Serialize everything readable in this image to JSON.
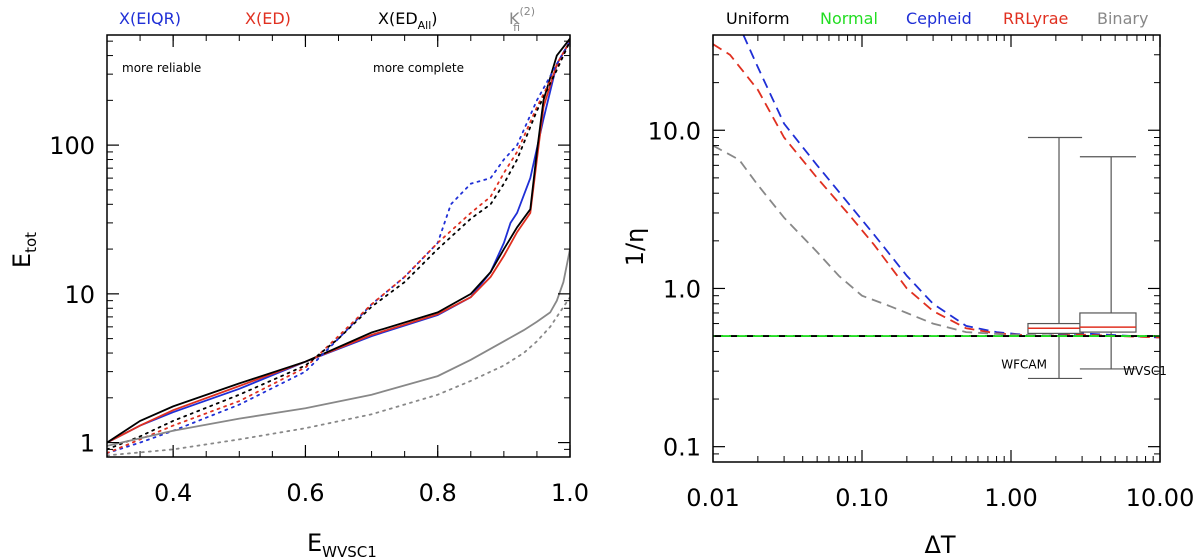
{
  "chart_data": [
    {
      "type": "line",
      "xscale": "linear",
      "yscale": "log",
      "xlabel_main": "E",
      "xlabel_sub": "WVSC1",
      "ylabel_main": "E",
      "ylabel_sub": "tot",
      "xlim": [
        0.3,
        1.0
      ],
      "ylim": [
        0.8,
        550
      ],
      "xticks": [
        {
          "v": 0.4,
          "label": "0.4"
        },
        {
          "v": 0.6,
          "label": "0.6"
        },
        {
          "v": 0.8,
          "label": "0.8"
        },
        {
          "v": 1.0,
          "label": "1.0"
        }
      ],
      "yticks": [
        {
          "v": 1,
          "label": "1"
        },
        {
          "v": 10,
          "label": "10"
        },
        {
          "v": 100,
          "label": "100"
        }
      ],
      "legend": [
        {
          "text": "X(EIQR)",
          "color": "#1f2fd6"
        },
        {
          "text": "X(ED)",
          "color": "#e03020"
        },
        {
          "text": "X(ED",
          "sub": "All",
          "close": ")",
          "color": "#000000"
        },
        {
          "text": "K",
          "sup": "(2)",
          "sub": "fi",
          "color": "#888888"
        }
      ],
      "annotations": [
        "more reliable",
        "more complete"
      ],
      "series": [
        {
          "name": "X(EIQR) solid",
          "color": "#1f2fd6",
          "dash": "solid",
          "x": [
            0.3,
            0.35,
            0.4,
            0.5,
            0.6,
            0.7,
            0.8,
            0.85,
            0.88,
            0.9,
            0.91,
            0.92,
            0.94,
            0.96,
            0.98,
            1.0
          ],
          "y": [
            1.0,
            1.3,
            1.6,
            2.3,
            3.5,
            5.2,
            7.2,
            9.5,
            14,
            22,
            30,
            35,
            60,
            150,
            350,
            500
          ]
        },
        {
          "name": "X(ED) solid",
          "color": "#e03020",
          "dash": "solid",
          "x": [
            0.3,
            0.35,
            0.4,
            0.5,
            0.6,
            0.7,
            0.8,
            0.85,
            0.88,
            0.9,
            0.92,
            0.94,
            0.95,
            0.96,
            0.98,
            1.0
          ],
          "y": [
            1.0,
            1.3,
            1.65,
            2.4,
            3.5,
            5.3,
            7.3,
            9.5,
            13,
            18,
            26,
            35,
            80,
            180,
            350,
            500
          ]
        },
        {
          "name": "X(EDAll) solid",
          "color": "#000000",
          "dash": "solid",
          "x": [
            0.3,
            0.35,
            0.4,
            0.5,
            0.6,
            0.7,
            0.8,
            0.85,
            0.88,
            0.9,
            0.92,
            0.94,
            0.95,
            0.96,
            0.98,
            1.0
          ],
          "y": [
            1.0,
            1.4,
            1.75,
            2.5,
            3.5,
            5.5,
            7.5,
            10,
            14,
            20,
            28,
            37,
            90,
            200,
            400,
            520
          ]
        },
        {
          "name": "X(EIQR) dotted",
          "color": "#1f2fd6",
          "dash": "dotted",
          "x": [
            0.3,
            0.35,
            0.4,
            0.5,
            0.6,
            0.65,
            0.7,
            0.75,
            0.8,
            0.82,
            0.85,
            0.88,
            0.9,
            0.92,
            0.95,
            0.98,
            1.0
          ],
          "y": [
            0.85,
            1.0,
            1.2,
            1.8,
            3.0,
            5.0,
            8.5,
            13,
            22,
            40,
            55,
            60,
            80,
            100,
            200,
            350,
            500
          ]
        },
        {
          "name": "X(ED) dotted",
          "color": "#e03020",
          "dash": "dotted",
          "x": [
            0.3,
            0.35,
            0.4,
            0.5,
            0.6,
            0.65,
            0.7,
            0.75,
            0.8,
            0.85,
            0.88,
            0.9,
            0.92,
            0.95,
            0.98,
            1.0
          ],
          "y": [
            0.85,
            1.05,
            1.3,
            1.9,
            3.2,
            5.2,
            8.5,
            13,
            22,
            35,
            45,
            65,
            90,
            180,
            330,
            500
          ]
        },
        {
          "name": "X(EDAll) dotted",
          "color": "#000000",
          "dash": "dotted",
          "x": [
            0.3,
            0.35,
            0.4,
            0.5,
            0.6,
            0.65,
            0.7,
            0.75,
            0.8,
            0.85,
            0.88,
            0.9,
            0.92,
            0.95,
            0.98,
            1.0
          ],
          "y": [
            0.9,
            1.1,
            1.4,
            2.1,
            3.3,
            5.0,
            8.2,
            12,
            20,
            32,
            40,
            55,
            80,
            170,
            320,
            500
          ]
        },
        {
          "name": "K fi solid",
          "color": "#888888",
          "dash": "solid",
          "x": [
            0.3,
            0.4,
            0.5,
            0.6,
            0.7,
            0.8,
            0.85,
            0.9,
            0.93,
            0.95,
            0.97,
            0.98,
            0.99,
            1.0
          ],
          "y": [
            0.95,
            1.2,
            1.45,
            1.7,
            2.1,
            2.8,
            3.6,
            4.8,
            5.7,
            6.5,
            7.5,
            9,
            12,
            20
          ]
        },
        {
          "name": "K fi dotted",
          "color": "#888888",
          "dash": "dotted",
          "x": [
            0.3,
            0.4,
            0.5,
            0.6,
            0.7,
            0.8,
            0.85,
            0.9,
            0.93,
            0.95,
            0.97,
            0.98,
            1.0
          ],
          "y": [
            0.82,
            0.9,
            1.05,
            1.25,
            1.55,
            2.1,
            2.6,
            3.3,
            4.0,
            4.8,
            6.0,
            7.0,
            9.5
          ]
        }
      ]
    },
    {
      "type": "line",
      "xscale": "log",
      "yscale": "log",
      "xlabel_main": "ΔT",
      "ylabel_main": "1/η",
      "xlim": [
        0.01,
        10
      ],
      "ylim": [
        0.08,
        40
      ],
      "xticks": [
        {
          "v": 0.01,
          "label": "0.01"
        },
        {
          "v": 0.1,
          "label": "0.10"
        },
        {
          "v": 1,
          "label": "1.00"
        },
        {
          "v": 10,
          "label": "10.00"
        }
      ],
      "yticks": [
        {
          "v": 0.1,
          "label": "0.1"
        },
        {
          "v": 1,
          "label": "1.0"
        },
        {
          "v": 10,
          "label": "10.0"
        }
      ],
      "legend": [
        {
          "text": "Uniform",
          "color": "#000000"
        },
        {
          "text": "Normal",
          "color": "#22dd22"
        },
        {
          "text": "Cepheid",
          "color": "#1f2fd6"
        },
        {
          "text": "RRLyrae",
          "color": "#e03020"
        },
        {
          "text": "Binary",
          "color": "#888888"
        }
      ],
      "series": [
        {
          "name": "Uniform",
          "color": "#000000",
          "dash": "dashed",
          "x": [
            0.01,
            0.1,
            1,
            10
          ],
          "y": [
            0.5,
            0.5,
            0.5,
            0.5
          ]
        },
        {
          "name": "Normal",
          "color": "#22dd22",
          "dash": "dashed",
          "x": [
            0.01,
            0.1,
            1,
            10
          ],
          "y": [
            0.5,
            0.5,
            0.5,
            0.5
          ]
        },
        {
          "name": "Cepheid",
          "color": "#1f2fd6",
          "dash": "dashed",
          "x": [
            0.016,
            0.02,
            0.03,
            0.05,
            0.08,
            0.12,
            0.2,
            0.3,
            0.5,
            0.8,
            1.5,
            3,
            10
          ],
          "y": [
            40,
            25,
            11,
            6,
            3.5,
            2.2,
            1.2,
            0.8,
            0.58,
            0.53,
            0.5,
            0.52,
            0.49
          ]
        },
        {
          "name": "RRLyrae",
          "color": "#e03020",
          "dash": "dashed",
          "x": [
            0.01,
            0.013,
            0.02,
            0.03,
            0.05,
            0.08,
            0.12,
            0.2,
            0.3,
            0.5,
            0.8,
            1.5,
            3,
            10
          ],
          "y": [
            35,
            30,
            18,
            9,
            5,
            3,
            1.9,
            1.0,
            0.72,
            0.56,
            0.52,
            0.5,
            0.51,
            0.49
          ]
        },
        {
          "name": "Binary",
          "color": "#888888",
          "dash": "dashed",
          "x": [
            0.01,
            0.015,
            0.02,
            0.03,
            0.05,
            0.07,
            0.1,
            0.15,
            0.2,
            0.3,
            0.5,
            1,
            3,
            10
          ],
          "y": [
            8,
            6.5,
            4.5,
            2.8,
            1.7,
            1.2,
            0.9,
            0.78,
            0.7,
            0.6,
            0.53,
            0.51,
            0.5,
            0.5
          ]
        }
      ],
      "boxplots": [
        {
          "label": "WFCAM",
          "x": 2.1,
          "min": 0.27,
          "q1": 0.52,
          "median": 0.56,
          "q3": 0.6,
          "max": 9.0,
          "xw0": 1.3,
          "xw1": 3.0
        },
        {
          "label": "WVSC1",
          "x": 4.7,
          "min": 0.31,
          "q1": 0.53,
          "median": 0.57,
          "q3": 0.7,
          "max": 6.8,
          "xw0": 2.9,
          "xw1": 6.9
        }
      ]
    }
  ]
}
